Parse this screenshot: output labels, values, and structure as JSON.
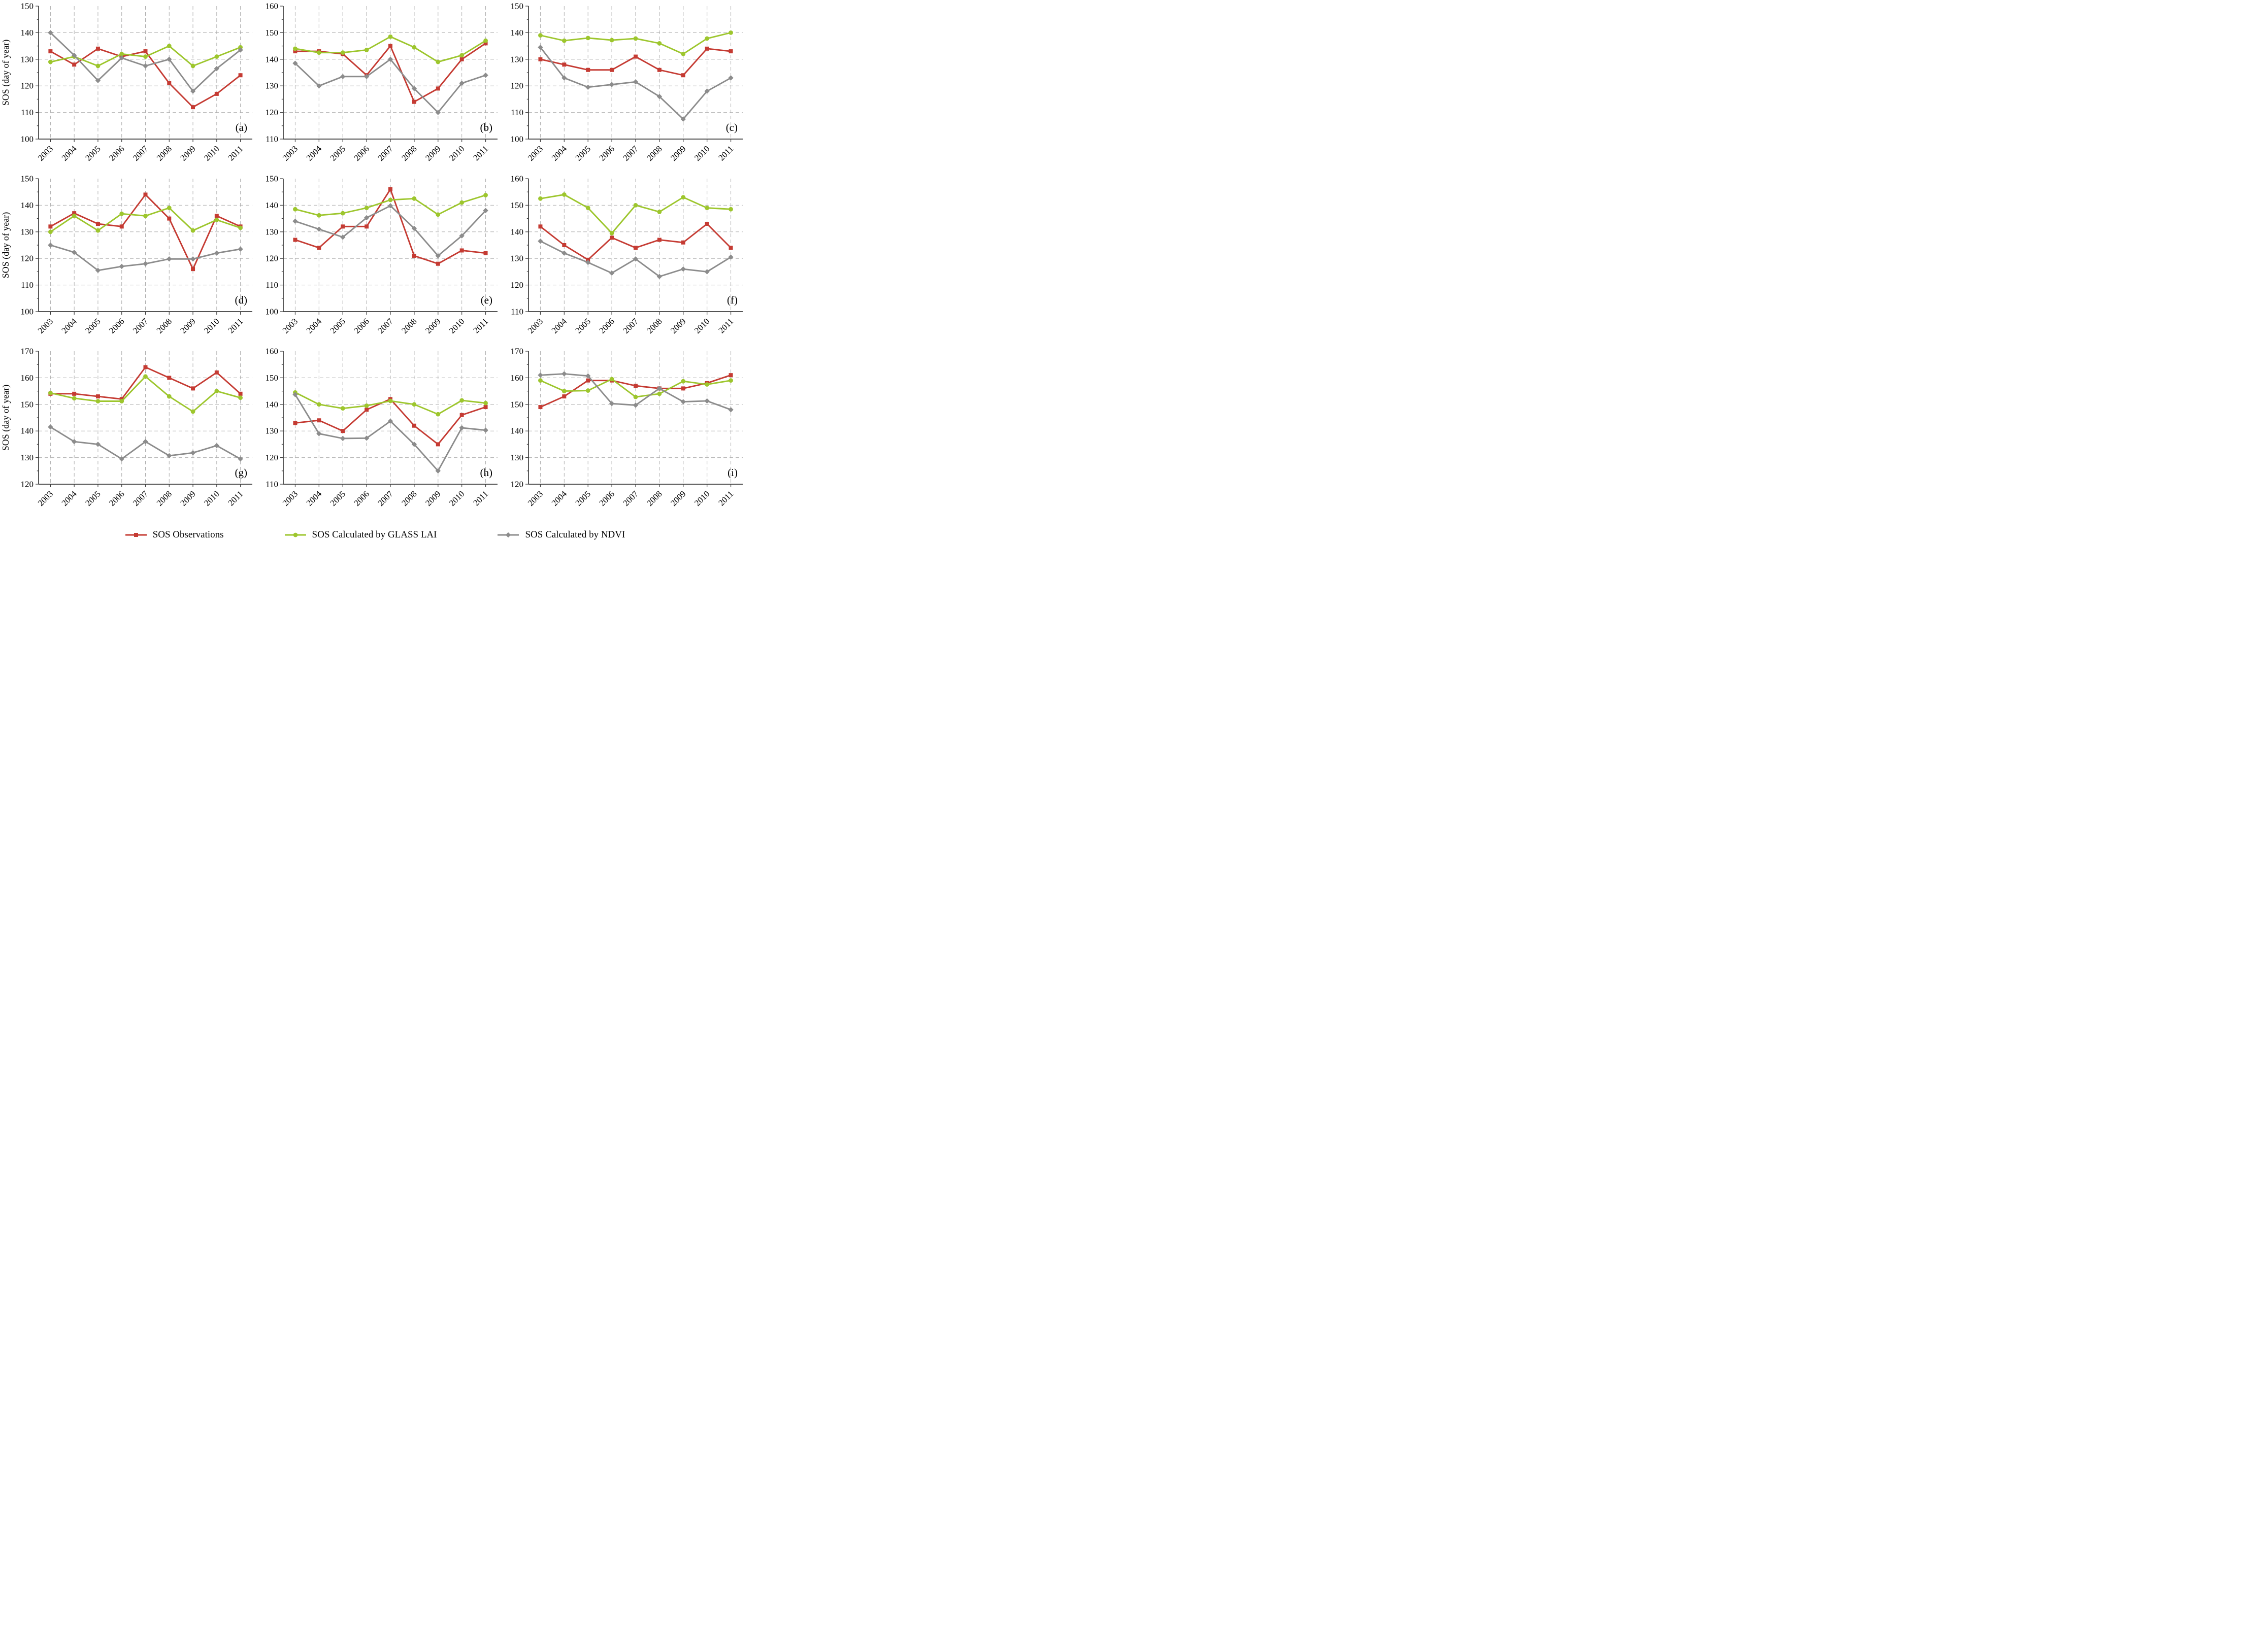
{
  "figure": {
    "y_axis_label": "SOS (day of year)",
    "colors": {
      "observations": "#C53B33",
      "glass_lai": "#9DC62D",
      "ndvi": "#8C8C8C"
    },
    "legend": [
      {
        "key": "observations",
        "label": "SOS Observations",
        "marker": "square"
      },
      {
        "key": "glass_lai",
        "label": "SOS Calculated by GLASS LAI",
        "marker": "circle"
      },
      {
        "key": "ndvi",
        "label": "SOS Calculated by NDVI",
        "marker": "diamond"
      }
    ],
    "legend_position": "bottom",
    "grid": true
  },
  "chart_data": [
    {
      "type": "line",
      "label": "(a)",
      "ylabel": "SOS (day of year)",
      "ylim": [
        100,
        150
      ],
      "ytick_step": 10,
      "categories": [
        "2003",
        "2004",
        "2005",
        "2006",
        "2007",
        "2008",
        "2009",
        "2010",
        "2011"
      ],
      "series": [
        {
          "name": "SOS Observations",
          "key": "observations",
          "marker": "square",
          "values": [
            133,
            128,
            134,
            131,
            133,
            121,
            112,
            117,
            124
          ]
        },
        {
          "name": "SOS Calculated by GLASS LAI",
          "key": "glass_lai",
          "marker": "circle",
          "values": [
            129,
            131,
            127.5,
            132,
            131,
            135,
            127.5,
            131,
            134.5
          ]
        },
        {
          "name": "SOS Calculated by NDVI",
          "key": "ndvi",
          "marker": "diamond",
          "values": [
            140,
            131.5,
            122,
            130.5,
            127.5,
            130,
            118,
            126.5,
            133.5
          ]
        }
      ]
    },
    {
      "type": "line",
      "label": "(b)",
      "ylabel": "",
      "ylim": [
        110,
        160
      ],
      "ytick_step": 10,
      "categories": [
        "2003",
        "2004",
        "2005",
        "2006",
        "2007",
        "2008",
        "2009",
        "2010",
        "2011"
      ],
      "series": [
        {
          "name": "SOS Observations",
          "key": "observations",
          "marker": "square",
          "values": [
            143,
            143,
            142,
            134,
            145,
            124,
            129,
            140,
            146
          ]
        },
        {
          "name": "SOS Calculated by GLASS LAI",
          "key": "glass_lai",
          "marker": "circle",
          "values": [
            144,
            142.5,
            142.5,
            143.5,
            148.5,
            144.5,
            139,
            141.5,
            147
          ]
        },
        {
          "name": "SOS Calculated by NDVI",
          "key": "ndvi",
          "marker": "diamond",
          "values": [
            138.5,
            130,
            133.5,
            133.5,
            140,
            129,
            120,
            131,
            134
          ]
        }
      ]
    },
    {
      "type": "line",
      "label": "(c)",
      "ylabel": "",
      "ylim": [
        100,
        150
      ],
      "ytick_step": 10,
      "categories": [
        "2003",
        "2004",
        "2005",
        "2006",
        "2007",
        "2008",
        "2009",
        "2010",
        "2011"
      ],
      "series": [
        {
          "name": "SOS Observations",
          "key": "observations",
          "marker": "square",
          "values": [
            130,
            128,
            126,
            126,
            131,
            126,
            124,
            134,
            133
          ]
        },
        {
          "name": "SOS Calculated by GLASS LAI",
          "key": "glass_lai",
          "marker": "circle",
          "values": [
            139,
            137,
            138,
            137.2,
            137.8,
            136,
            132,
            137.8,
            140
          ]
        },
        {
          "name": "SOS Calculated by NDVI",
          "key": "ndvi",
          "marker": "diamond",
          "values": [
            134.5,
            123,
            119.5,
            120.5,
            121.5,
            116,
            107.5,
            118,
            123
          ]
        }
      ]
    },
    {
      "type": "line",
      "label": "(d)",
      "ylabel": "SOS (day of year)",
      "ylim": [
        100,
        150
      ],
      "ytick_step": 10,
      "categories": [
        "2003",
        "2004",
        "2005",
        "2006",
        "2007",
        "2008",
        "2009",
        "2010",
        "2011"
      ],
      "series": [
        {
          "name": "SOS Observations",
          "key": "observations",
          "marker": "square",
          "values": [
            132,
            137,
            133,
            132,
            144,
            135,
            116,
            136,
            132
          ]
        },
        {
          "name": "SOS Calculated by GLASS LAI",
          "key": "glass_lai",
          "marker": "circle",
          "values": [
            130,
            136,
            130.5,
            136.8,
            136,
            139,
            130.5,
            134.5,
            131.5
          ]
        },
        {
          "name": "SOS Calculated by NDVI",
          "key": "ndvi",
          "marker": "diamond",
          "values": [
            125,
            122.3,
            115.5,
            117,
            118,
            119.8,
            119.8,
            122,
            123.5
          ]
        }
      ]
    },
    {
      "type": "line",
      "label": "(e)",
      "ylabel": "",
      "ylim": [
        100,
        150
      ],
      "ytick_step": 10,
      "categories": [
        "2003",
        "2004",
        "2005",
        "2006",
        "2007",
        "2008",
        "2009",
        "2010",
        "2011"
      ],
      "series": [
        {
          "name": "SOS Observations",
          "key": "observations",
          "marker": "square",
          "values": [
            127,
            124,
            132,
            132,
            146,
            121,
            118,
            123,
            122
          ]
        },
        {
          "name": "SOS Calculated by GLASS LAI",
          "key": "glass_lai",
          "marker": "circle",
          "values": [
            138.5,
            136.2,
            137,
            139,
            142,
            142.5,
            136.5,
            141,
            143.8
          ]
        },
        {
          "name": "SOS Calculated by NDVI",
          "key": "ndvi",
          "marker": "diamond",
          "values": [
            134,
            131,
            128,
            135.3,
            139.8,
            131.3,
            121,
            128.5,
            138
          ]
        }
      ]
    },
    {
      "type": "line",
      "label": "(f)",
      "ylabel": "",
      "ylim": [
        110,
        160
      ],
      "ytick_step": 10,
      "categories": [
        "2003",
        "2004",
        "2005",
        "2006",
        "2007",
        "2008",
        "2009",
        "2010",
        "2011"
      ],
      "series": [
        {
          "name": "SOS Observations",
          "key": "observations",
          "marker": "square",
          "values": [
            142,
            135,
            129.5,
            137.8,
            134,
            137,
            136,
            143,
            134
          ]
        },
        {
          "name": "SOS Calculated by GLASS LAI",
          "key": "glass_lai",
          "marker": "circle",
          "values": [
            152.5,
            154,
            149,
            139.5,
            150,
            147.5,
            153,
            149,
            148.5
          ]
        },
        {
          "name": "SOS Calculated by NDVI",
          "key": "ndvi",
          "marker": "diamond",
          "values": [
            136.5,
            132,
            128.5,
            124.5,
            129.8,
            123.2,
            126,
            125,
            130.5
          ]
        }
      ]
    },
    {
      "type": "line",
      "label": "(g)",
      "ylabel": "SOS (day of year)",
      "ylim": [
        120,
        170
      ],
      "ytick_step": 10,
      "categories": [
        "2003",
        "2004",
        "2005",
        "2006",
        "2007",
        "2008",
        "2009",
        "2010",
        "2011"
      ],
      "series": [
        {
          "name": "SOS Observations",
          "key": "observations",
          "marker": "square",
          "values": [
            154,
            154,
            153,
            152,
            164,
            160,
            156,
            162,
            154
          ]
        },
        {
          "name": "SOS Calculated by GLASS LAI",
          "key": "glass_lai",
          "marker": "circle",
          "values": [
            154.3,
            152.3,
            151.2,
            151.2,
            160.5,
            153,
            147.3,
            155,
            152.5
          ]
        },
        {
          "name": "SOS Calculated by NDVI",
          "key": "ndvi",
          "marker": "diamond",
          "values": [
            141.5,
            136,
            135,
            129.5,
            136,
            130.7,
            131.8,
            134.5,
            129.5
          ]
        }
      ]
    },
    {
      "type": "line",
      "label": "(h)",
      "ylabel": "",
      "ylim": [
        110,
        160
      ],
      "ytick_step": 10,
      "categories": [
        "2003",
        "2004",
        "2005",
        "2006",
        "2007",
        "2008",
        "2009",
        "2010",
        "2011"
      ],
      "series": [
        {
          "name": "SOS Observations",
          "key": "observations",
          "marker": "square",
          "values": [
            133,
            134,
            130,
            138,
            142,
            132,
            125,
            136,
            139
          ]
        },
        {
          "name": "SOS Calculated by GLASS LAI",
          "key": "glass_lai",
          "marker": "circle",
          "values": [
            144.5,
            140,
            138.5,
            139.5,
            141.3,
            140,
            136.3,
            141.5,
            140.5
          ]
        },
        {
          "name": "SOS Calculated by NDVI",
          "key": "ndvi",
          "marker": "diamond",
          "values": [
            143.7,
            129,
            127.2,
            127.3,
            133.7,
            125,
            115,
            131.2,
            130.3
          ]
        }
      ]
    },
    {
      "type": "line",
      "label": "(i)",
      "ylabel": "",
      "ylim": [
        120,
        170
      ],
      "ytick_step": 10,
      "categories": [
        "2003",
        "2004",
        "2005",
        "2006",
        "2007",
        "2008",
        "2009",
        "2010",
        "2011"
      ],
      "series": [
        {
          "name": "SOS Observations",
          "key": "observations",
          "marker": "square",
          "values": [
            149,
            153,
            159,
            159,
            157,
            156,
            156,
            158,
            161
          ]
        },
        {
          "name": "SOS Calculated by GLASS LAI",
          "key": "glass_lai",
          "marker": "circle",
          "values": [
            159,
            155,
            155.2,
            159.5,
            152.8,
            154,
            158.7,
            157.5,
            159
          ]
        },
        {
          "name": "SOS Calculated by NDVI",
          "key": "ndvi",
          "marker": "diamond",
          "values": [
            161,
            161.5,
            160.7,
            150.3,
            149.7,
            156,
            151,
            151.3,
            148
          ]
        }
      ]
    }
  ]
}
